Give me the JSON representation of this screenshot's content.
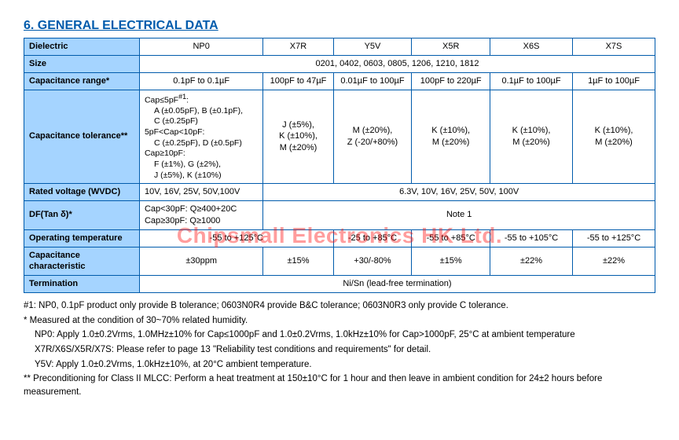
{
  "title": "6. GENERAL ELECTRICAL DATA",
  "watermark": "Chipsmall Electronics HK Ltd.",
  "style": {
    "title_color": "#005bac",
    "title_fontsize": 16,
    "border_color": "#005bac",
    "header_bg": "#a5d4ff",
    "cell_fontsize": 11,
    "body_fontsize": 12,
    "notes_fontsize": 11.5,
    "watermark_color": "#ff0000",
    "watermark_fontsize": 28,
    "watermark_opacity": 0.38,
    "page_bg": "#ffffff"
  },
  "col_widths": [
    "140px",
    "150px",
    "85px",
    "95px",
    "95px",
    "100px",
    "100px"
  ],
  "rows": {
    "dielectric": {
      "label": "Dielectric",
      "cols": [
        "NP0",
        "X7R",
        "Y5V",
        "X5R",
        "X6S",
        "X7S"
      ]
    },
    "size": {
      "label": "Size",
      "value": "0201, 0402, 0603, 0805, 1206, 1210, 1812"
    },
    "cap_range": {
      "label": "Capacitance range*",
      "cols": [
        "0.1pF to 0.1µF",
        "100pF to 47µF",
        "0.01µF to 100µF",
        "100pF to 220µF",
        "0.1µF to 100µF",
        "1µF to 100µF"
      ]
    },
    "cap_tol": {
      "label": "Capacitance tolerance**",
      "np0": {
        "g1_head": "Cap≤5pF",
        "g1_sup": "#1",
        "g1_tail": ":",
        "g1_l1": "A (±0.05pF), B (±0.1pF),",
        "g1_l2": "C (±0.25pF)",
        "g2_head": "5pF<Cap<10pF:",
        "g2_l1": "C (±0.25pF), D (±0.5pF)",
        "g3_head": "Cap≥10pF:",
        "g3_l1": "F (±1%), G (±2%),",
        "g3_l2": "J (±5%), K (±10%)"
      },
      "x7r": "J (±5%),\nK (±10%),\nM (±20%)",
      "y5v": "M (±20%),\nZ (-20/+80%)",
      "x5r": "K (±10%),\nM (±20%)",
      "x6s": "K (±10%),\nM (±20%)",
      "x7s": "K (±10%),\nM (±20%)"
    },
    "rated_v": {
      "label": "Rated voltage (WVDC)",
      "np0": "10V, 16V, 25V, 50V,100V",
      "rest": "6.3V, 10V, 16V, 25V, 50V, 100V"
    },
    "df": {
      "label": "DF(Tan δ)*",
      "np0_l1": "Cap<30pF: Q≥400+20C",
      "np0_l2": "Cap≥30pF: Q≥1000",
      "rest": "Note 1"
    },
    "op_temp": {
      "label": "Operating temperature",
      "np0_x7r": "-55 to +125°C",
      "y5v": "-25 to +85°C",
      "x5r": "-55 to +85°C",
      "x6s": "-55 to +105°C",
      "x7s": "-55 to +125°C"
    },
    "cap_char": {
      "label": "Capacitance characteristic",
      "cols": [
        "±30ppm",
        "±15%",
        "+30/-80%",
        "±15%",
        "±22%",
        "±22%"
      ]
    },
    "term": {
      "label": "Termination",
      "value": "Ni/Sn (lead-free termination)"
    }
  },
  "notes": {
    "n1": "#1: NP0, 0.1pF product only provide B tolerance; 0603N0R4 provide B&C tolerance; 0603N0R3 only provide C tolerance.",
    "n2": "* Measured at the condition of 30~70% related humidity.",
    "n3": "NP0: Apply 1.0±0.2Vrms, 1.0MHz±10% for Cap≤1000pF and 1.0±0.2Vrms, 1.0kHz±10% for Cap>1000pF, 25°C at ambient temperature",
    "n4": "X7R/X6S/X5R/X7S: Please refer to page 13 \"Reliability test conditions and requirements\" for detail.",
    "n5": "Y5V: Apply 1.0±0.2Vrms, 1.0kHz±10%, at 20°C ambient temperature.",
    "n6": "** Preconditioning for Class II MLCC: Perform a heat treatment at 150±10°C for 1 hour and then leave in ambient condition for 24±2 hours before measurement."
  }
}
